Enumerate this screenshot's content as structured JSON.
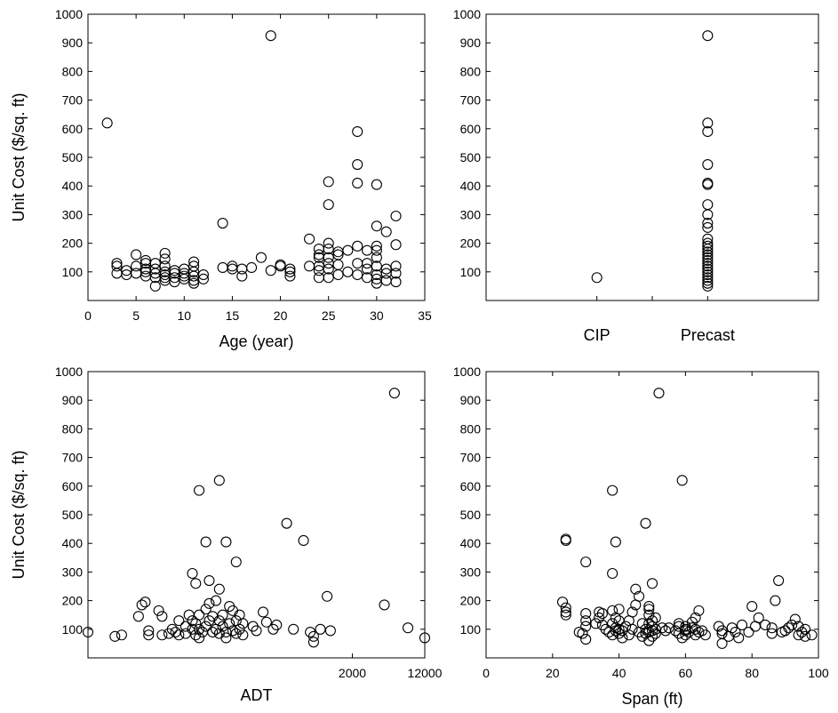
{
  "chart_data": [
    {
      "id": "age",
      "type": "scatter",
      "title": "",
      "xlabel": "Age (year)",
      "ylabel": "Unit Cost ($/sq. ft)",
      "xlim": [
        0,
        35
      ],
      "ylim": [
        0,
        1000
      ],
      "xticks": [
        "0",
        "5",
        "10",
        "15",
        "20",
        "25",
        "30",
        "35"
      ],
      "yticks": [
        "100",
        "200",
        "300",
        "400",
        "500",
        "600",
        "700",
        "800",
        "900",
        "1000"
      ],
      "grid": false,
      "marker": "open-circle",
      "points": [
        [
          2,
          620
        ],
        [
          3,
          95
        ],
        [
          3,
          120
        ],
        [
          3,
          130
        ],
        [
          4,
          90
        ],
        [
          4,
          105
        ],
        [
          5,
          95
        ],
        [
          5,
          120
        ],
        [
          5,
          160
        ],
        [
          6,
          85
        ],
        [
          6,
          100
        ],
        [
          6,
          110
        ],
        [
          6,
          130
        ],
        [
          6,
          140
        ],
        [
          7,
          50
        ],
        [
          7,
          80
        ],
        [
          7,
          95
        ],
        [
          7,
          110
        ],
        [
          7,
          130
        ],
        [
          8,
          70
        ],
        [
          8,
          80
        ],
        [
          8,
          90
        ],
        [
          8,
          100
        ],
        [
          8,
          120
        ],
        [
          8,
          145
        ],
        [
          8,
          165
        ],
        [
          9,
          65
        ],
        [
          9,
          80
        ],
        [
          9,
          95
        ],
        [
          9,
          105
        ],
        [
          10,
          75
        ],
        [
          10,
          85
        ],
        [
          10,
          95
        ],
        [
          10,
          110
        ],
        [
          11,
          60
        ],
        [
          11,
          70
        ],
        [
          11,
          85
        ],
        [
          11,
          100
        ],
        [
          11,
          120
        ],
        [
          11,
          135
        ],
        [
          12,
          75
        ],
        [
          12,
          90
        ],
        [
          14,
          270
        ],
        [
          14,
          115
        ],
        [
          15,
          110
        ],
        [
          15,
          120
        ],
        [
          16,
          85
        ],
        [
          16,
          110
        ],
        [
          17,
          115
        ],
        [
          18,
          150
        ],
        [
          19,
          925
        ],
        [
          19,
          105
        ],
        [
          20,
          120
        ],
        [
          20,
          125
        ],
        [
          21,
          85
        ],
        [
          21,
          100
        ],
        [
          21,
          110
        ],
        [
          23,
          120
        ],
        [
          23,
          215
        ],
        [
          24,
          80
        ],
        [
          24,
          105
        ],
        [
          24,
          120
        ],
        [
          24,
          150
        ],
        [
          24,
          160
        ],
        [
          24,
          180
        ],
        [
          25,
          80
        ],
        [
          25,
          110
        ],
        [
          25,
          130
        ],
        [
          25,
          150
        ],
        [
          25,
          180
        ],
        [
          25,
          200
        ],
        [
          25,
          335
        ],
        [
          25,
          415
        ],
        [
          26,
          90
        ],
        [
          26,
          125
        ],
        [
          26,
          160
        ],
        [
          26,
          170
        ],
        [
          27,
          100
        ],
        [
          27,
          175
        ],
        [
          28,
          90
        ],
        [
          28,
          130
        ],
        [
          28,
          190
        ],
        [
          28,
          410
        ],
        [
          28,
          475
        ],
        [
          28,
          590
        ],
        [
          29,
          80
        ],
        [
          29,
          110
        ],
        [
          29,
          130
        ],
        [
          29,
          175
        ],
        [
          30,
          60
        ],
        [
          30,
          75
        ],
        [
          30,
          90
        ],
        [
          30,
          120
        ],
        [
          30,
          150
        ],
        [
          30,
          175
        ],
        [
          30,
          190
        ],
        [
          30,
          260
        ],
        [
          30,
          405
        ],
        [
          31,
          70
        ],
        [
          31,
          95
        ],
        [
          31,
          110
        ],
        [
          31,
          240
        ],
        [
          32,
          65
        ],
        [
          32,
          95
        ],
        [
          32,
          120
        ],
        [
          32,
          195
        ],
        [
          32,
          295
        ]
      ]
    },
    {
      "id": "type",
      "type": "scatter",
      "title": "",
      "xlabel": "",
      "ylabel": "",
      "categories": [
        "CIP",
        "Precast"
      ],
      "ylim": [
        0,
        1000
      ],
      "yticks": [
        "100",
        "200",
        "300",
        "400",
        "500",
        "600",
        "700",
        "800",
        "900",
        "1000"
      ],
      "grid": false,
      "marker": "open-circle",
      "points": [
        [
          "CIP",
          80
        ],
        [
          "Precast",
          925
        ],
        [
          "Precast",
          620
        ],
        [
          "Precast",
          590
        ],
        [
          "Precast",
          475
        ],
        [
          "Precast",
          410
        ],
        [
          "Precast",
          405
        ],
        [
          "Precast",
          335
        ],
        [
          "Precast",
          300
        ],
        [
          "Precast",
          270
        ],
        [
          "Precast",
          255
        ],
        [
          "Precast",
          215
        ],
        [
          "Precast",
          200
        ],
        [
          "Precast",
          190
        ],
        [
          "Precast",
          180
        ],
        [
          "Precast",
          170
        ],
        [
          "Precast",
          160
        ],
        [
          "Precast",
          150
        ],
        [
          "Precast",
          140
        ],
        [
          "Precast",
          130
        ],
        [
          "Precast",
          120
        ],
        [
          "Precast",
          110
        ],
        [
          "Precast",
          100
        ],
        [
          "Precast",
          90
        ],
        [
          "Precast",
          80
        ],
        [
          "Precast",
          70
        ],
        [
          "Precast",
          60
        ],
        [
          "Precast",
          50
        ]
      ]
    },
    {
      "id": "adt",
      "type": "scatter",
      "title": "",
      "xlabel": "ADT",
      "ylabel": "Unit Cost ($/sq. ft)",
      "xticks_visible": [
        "2000",
        "12000"
      ],
      "ylim": [
        0,
        1000
      ],
      "yticks": [
        "100",
        "200",
        "300",
        "400",
        "500",
        "600",
        "700",
        "800",
        "900",
        "1000"
      ],
      "grid": false,
      "marker": "open-circle",
      "x_note": "horizontal values estimated as fraction of axis width",
      "points": [
        [
          0.0,
          90
        ],
        [
          0.08,
          75
        ],
        [
          0.1,
          80
        ],
        [
          0.15,
          145
        ],
        [
          0.16,
          185
        ],
        [
          0.17,
          195
        ],
        [
          0.18,
          80
        ],
        [
          0.18,
          95
        ],
        [
          0.21,
          165
        ],
        [
          0.22,
          80
        ],
        [
          0.22,
          145
        ],
        [
          0.24,
          85
        ],
        [
          0.25,
          100
        ],
        [
          0.26,
          90
        ],
        [
          0.27,
          80
        ],
        [
          0.27,
          130
        ],
        [
          0.29,
          85
        ],
        [
          0.29,
          110
        ],
        [
          0.3,
          150
        ],
        [
          0.31,
          100
        ],
        [
          0.31,
          130
        ],
        [
          0.31,
          295
        ],
        [
          0.32,
          80
        ],
        [
          0.32,
          120
        ],
        [
          0.32,
          260
        ],
        [
          0.33,
          70
        ],
        [
          0.33,
          100
        ],
        [
          0.33,
          150
        ],
        [
          0.33,
          585
        ],
        [
          0.34,
          90
        ],
        [
          0.35,
          110
        ],
        [
          0.35,
          170
        ],
        [
          0.35,
          405
        ],
        [
          0.36,
          130
        ],
        [
          0.36,
          190
        ],
        [
          0.36,
          270
        ],
        [
          0.37,
          90
        ],
        [
          0.37,
          145
        ],
        [
          0.38,
          100
        ],
        [
          0.38,
          200
        ],
        [
          0.39,
          85
        ],
        [
          0.39,
          130
        ],
        [
          0.39,
          240
        ],
        [
          0.39,
          620
        ],
        [
          0.4,
          110
        ],
        [
          0.4,
          150
        ],
        [
          0.41,
          70
        ],
        [
          0.41,
          90
        ],
        [
          0.41,
          405
        ],
        [
          0.42,
          120
        ],
        [
          0.42,
          180
        ],
        [
          0.43,
          95
        ],
        [
          0.43,
          165
        ],
        [
          0.44,
          85
        ],
        [
          0.44,
          130
        ],
        [
          0.44,
          335
        ],
        [
          0.45,
          100
        ],
        [
          0.45,
          150
        ],
        [
          0.46,
          80
        ],
        [
          0.46,
          120
        ],
        [
          0.49,
          110
        ],
        [
          0.5,
          95
        ],
        [
          0.52,
          160
        ],
        [
          0.53,
          125
        ],
        [
          0.55,
          100
        ],
        [
          0.56,
          115
        ],
        [
          0.59,
          470
        ],
        [
          0.61,
          100
        ],
        [
          0.64,
          410
        ],
        [
          0.66,
          90
        ],
        [
          0.67,
          55
        ],
        [
          0.67,
          75
        ],
        [
          0.69,
          100
        ],
        [
          0.71,
          215
        ],
        [
          0.72,
          95
        ],
        [
          0.88,
          185
        ],
        [
          0.91,
          925
        ],
        [
          0.95,
          105
        ],
        [
          1.0,
          70
        ]
      ]
    },
    {
      "id": "span",
      "type": "scatter",
      "title": "",
      "xlabel": "Span (ft)",
      "ylabel": "",
      "xlim": [
        0,
        100
      ],
      "ylim": [
        0,
        1000
      ],
      "xticks": [
        "0",
        "20",
        "40",
        "60",
        "80",
        "100"
      ],
      "yticks": [
        "100",
        "200",
        "300",
        "400",
        "500",
        "600",
        "700",
        "800",
        "900",
        "1000"
      ],
      "grid": false,
      "marker": "open-circle",
      "points": [
        [
          23,
          195
        ],
        [
          24,
          150
        ],
        [
          24,
          160
        ],
        [
          24,
          175
        ],
        [
          24,
          410
        ],
        [
          24,
          415
        ],
        [
          28,
          90
        ],
        [
          29,
          85
        ],
        [
          30,
          65
        ],
        [
          30,
          110
        ],
        [
          30,
          130
        ],
        [
          30,
          155
        ],
        [
          30,
          335
        ],
        [
          33,
          120
        ],
        [
          34,
          140
        ],
        [
          34,
          160
        ],
        [
          35,
          115
        ],
        [
          35,
          155
        ],
        [
          36,
          100
        ],
        [
          37,
          90
        ],
        [
          38,
          80
        ],
        [
          38,
          120
        ],
        [
          38,
          165
        ],
        [
          38,
          295
        ],
        [
          38,
          585
        ],
        [
          39,
          95
        ],
        [
          39,
          105
        ],
        [
          39,
          140
        ],
        [
          39,
          405
        ],
        [
          40,
          85
        ],
        [
          40,
          100
        ],
        [
          40,
          130
        ],
        [
          40,
          170
        ],
        [
          41,
          70
        ],
        [
          41,
          95
        ],
        [
          42,
          110
        ],
        [
          43,
          80
        ],
        [
          43,
          130
        ],
        [
          44,
          100
        ],
        [
          44,
          160
        ],
        [
          45,
          185
        ],
        [
          45,
          240
        ],
        [
          46,
          90
        ],
        [
          46,
          215
        ],
        [
          47,
          75
        ],
        [
          47,
          120
        ],
        [
          48,
          85
        ],
        [
          48,
          100
        ],
        [
          48,
          470
        ],
        [
          49,
          60
        ],
        [
          49,
          90
        ],
        [
          49,
          120
        ],
        [
          49,
          150
        ],
        [
          49,
          170
        ],
        [
          49,
          180
        ],
        [
          50,
          75
        ],
        [
          50,
          95
        ],
        [
          50,
          110
        ],
        [
          50,
          130
        ],
        [
          50,
          260
        ],
        [
          51,
          85
        ],
        [
          51,
          100
        ],
        [
          51,
          140
        ],
        [
          52,
          925
        ],
        [
          53,
          105
        ],
        [
          54,
          95
        ],
        [
          55,
          105
        ],
        [
          57,
          95
        ],
        [
          58,
          85
        ],
        [
          58,
          110
        ],
        [
          58,
          120
        ],
        [
          59,
          70
        ],
        [
          59,
          620
        ],
        [
          60,
          80
        ],
        [
          60,
          95
        ],
        [
          60,
          100
        ],
        [
          60,
          110
        ],
        [
          61,
          90
        ],
        [
          62,
          105
        ],
        [
          62,
          125
        ],
        [
          63,
          80
        ],
        [
          63,
          100
        ],
        [
          63,
          140
        ],
        [
          64,
          90
        ],
        [
          64,
          165
        ],
        [
          65,
          95
        ],
        [
          66,
          80
        ],
        [
          70,
          110
        ],
        [
          71,
          50
        ],
        [
          71,
          85
        ],
        [
          71,
          95
        ],
        [
          73,
          75
        ],
        [
          74,
          105
        ],
        [
          75,
          90
        ],
        [
          76,
          70
        ],
        [
          77,
          115
        ],
        [
          79,
          90
        ],
        [
          80,
          180
        ],
        [
          81,
          110
        ],
        [
          82,
          140
        ],
        [
          84,
          115
        ],
        [
          86,
          85
        ],
        [
          86,
          105
        ],
        [
          87,
          200
        ],
        [
          88,
          270
        ],
        [
          89,
          90
        ],
        [
          90,
          95
        ],
        [
          91,
          105
        ],
        [
          92,
          115
        ],
        [
          93,
          135
        ],
        [
          94,
          80
        ],
        [
          94,
          110
        ],
        [
          95,
          90
        ],
        [
          96,
          75
        ],
        [
          96,
          100
        ],
        [
          98,
          80
        ]
      ]
    }
  ]
}
